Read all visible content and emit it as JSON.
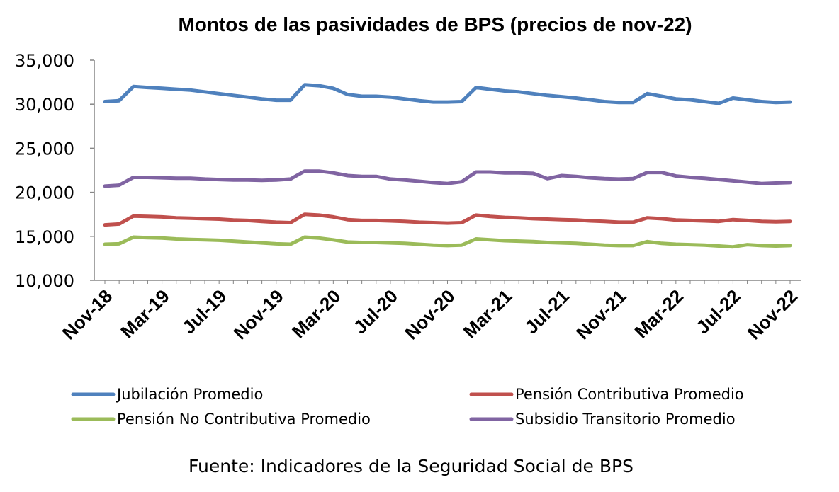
{
  "chart_data": {
    "type": "line",
    "title": "Montos de las pasividades de BPS (precios de nov-22)",
    "source": "Fuente: Indicadores de la Seguridad Social de BPS",
    "xlabel": "",
    "ylabel": "",
    "ylim": [
      10000,
      35000
    ],
    "y_ticks": [
      10000,
      15000,
      20000,
      25000,
      30000,
      35000
    ],
    "y_tick_labels": [
      "10,000",
      "15,000",
      "20,000",
      "25,000",
      "30,000",
      "35,000"
    ],
    "x": [
      "Nov-18",
      "Dec-18",
      "Jan-19",
      "Feb-19",
      "Mar-19",
      "Apr-19",
      "May-19",
      "Jun-19",
      "Jul-19",
      "Aug-19",
      "Sep-19",
      "Oct-19",
      "Nov-19",
      "Dec-19",
      "Jan-20",
      "Feb-20",
      "Mar-20",
      "Apr-20",
      "May-20",
      "Jun-20",
      "Jul-20",
      "Aug-20",
      "Sep-20",
      "Oct-20",
      "Nov-20",
      "Dec-20",
      "Jan-21",
      "Feb-21",
      "Mar-21",
      "Apr-21",
      "May-21",
      "Jun-21",
      "Jul-21",
      "Aug-21",
      "Sep-21",
      "Oct-21",
      "Nov-21",
      "Dec-21",
      "Jan-22",
      "Feb-22",
      "Mar-22",
      "Apr-22",
      "May-22",
      "Jun-22",
      "Jul-22",
      "Aug-22",
      "Sep-22",
      "Oct-22",
      "Nov-22"
    ],
    "x_tick_labels": [
      "Nov-18",
      "Mar-19",
      "Jul-19",
      "Nov-19",
      "Mar-20",
      "Jul-20",
      "Nov-20",
      "Mar-21",
      "Jul-21",
      "Nov-21",
      "Mar-22",
      "Jul-22",
      "Nov-22"
    ],
    "x_tick_indices": [
      0,
      4,
      8,
      12,
      16,
      20,
      24,
      28,
      32,
      36,
      40,
      44,
      48
    ],
    "grid": false,
    "legend_position": "bottom",
    "series": [
      {
        "name": "Jubilación Promedio",
        "color": "#4f81bd",
        "values": [
          30300,
          30400,
          32000,
          31900,
          31800,
          31700,
          31600,
          31400,
          31200,
          31000,
          30800,
          30600,
          30450,
          30450,
          32200,
          32100,
          31800,
          31100,
          30900,
          30900,
          30800,
          30600,
          30400,
          30250,
          30250,
          30300,
          31900,
          31700,
          31500,
          31400,
          31200,
          31000,
          30850,
          30700,
          30500,
          30300,
          30200,
          30200,
          31200,
          30900,
          30600,
          30500,
          30300,
          30100,
          30700,
          30500,
          30300,
          30200,
          30250
        ]
      },
      {
        "name": "Pensión Contributiva Promedio",
        "color": "#c0504d",
        "values": [
          16300,
          16400,
          17300,
          17250,
          17200,
          17100,
          17050,
          17000,
          16950,
          16850,
          16800,
          16700,
          16600,
          16550,
          17500,
          17400,
          17200,
          16900,
          16800,
          16800,
          16750,
          16700,
          16600,
          16550,
          16500,
          16550,
          17400,
          17250,
          17150,
          17100,
          17000,
          16950,
          16900,
          16850,
          16750,
          16700,
          16600,
          16600,
          17100,
          17000,
          16850,
          16800,
          16750,
          16700,
          16900,
          16800,
          16700,
          16650,
          16700
        ]
      },
      {
        "name": "Pensión No Contributiva Promedio",
        "color": "#9bbb59",
        "values": [
          14100,
          14150,
          14900,
          14850,
          14800,
          14700,
          14650,
          14600,
          14550,
          14450,
          14350,
          14250,
          14150,
          14100,
          14900,
          14800,
          14600,
          14350,
          14300,
          14300,
          14250,
          14200,
          14100,
          14000,
          13950,
          14000,
          14700,
          14600,
          14500,
          14450,
          14400,
          14300,
          14250,
          14200,
          14100,
          14000,
          13950,
          13950,
          14400,
          14200,
          14100,
          14050,
          14000,
          13900,
          13800,
          14050,
          13950,
          13900,
          13950
        ]
      },
      {
        "name": "Subsidio Transitorio Promedio",
        "color": "#8064a2",
        "values": [
          20700,
          20800,
          21700,
          21700,
          21650,
          21600,
          21600,
          21500,
          21450,
          21400,
          21400,
          21350,
          21400,
          21500,
          22400,
          22400,
          22200,
          21900,
          21800,
          21800,
          21500,
          21400,
          21250,
          21100,
          21000,
          21200,
          22300,
          22300,
          22200,
          22200,
          22150,
          21550,
          21900,
          21800,
          21650,
          21550,
          21500,
          21550,
          22250,
          22250,
          21850,
          21700,
          21600,
          21450,
          21300,
          21150,
          21000,
          21050,
          21100
        ]
      }
    ]
  }
}
